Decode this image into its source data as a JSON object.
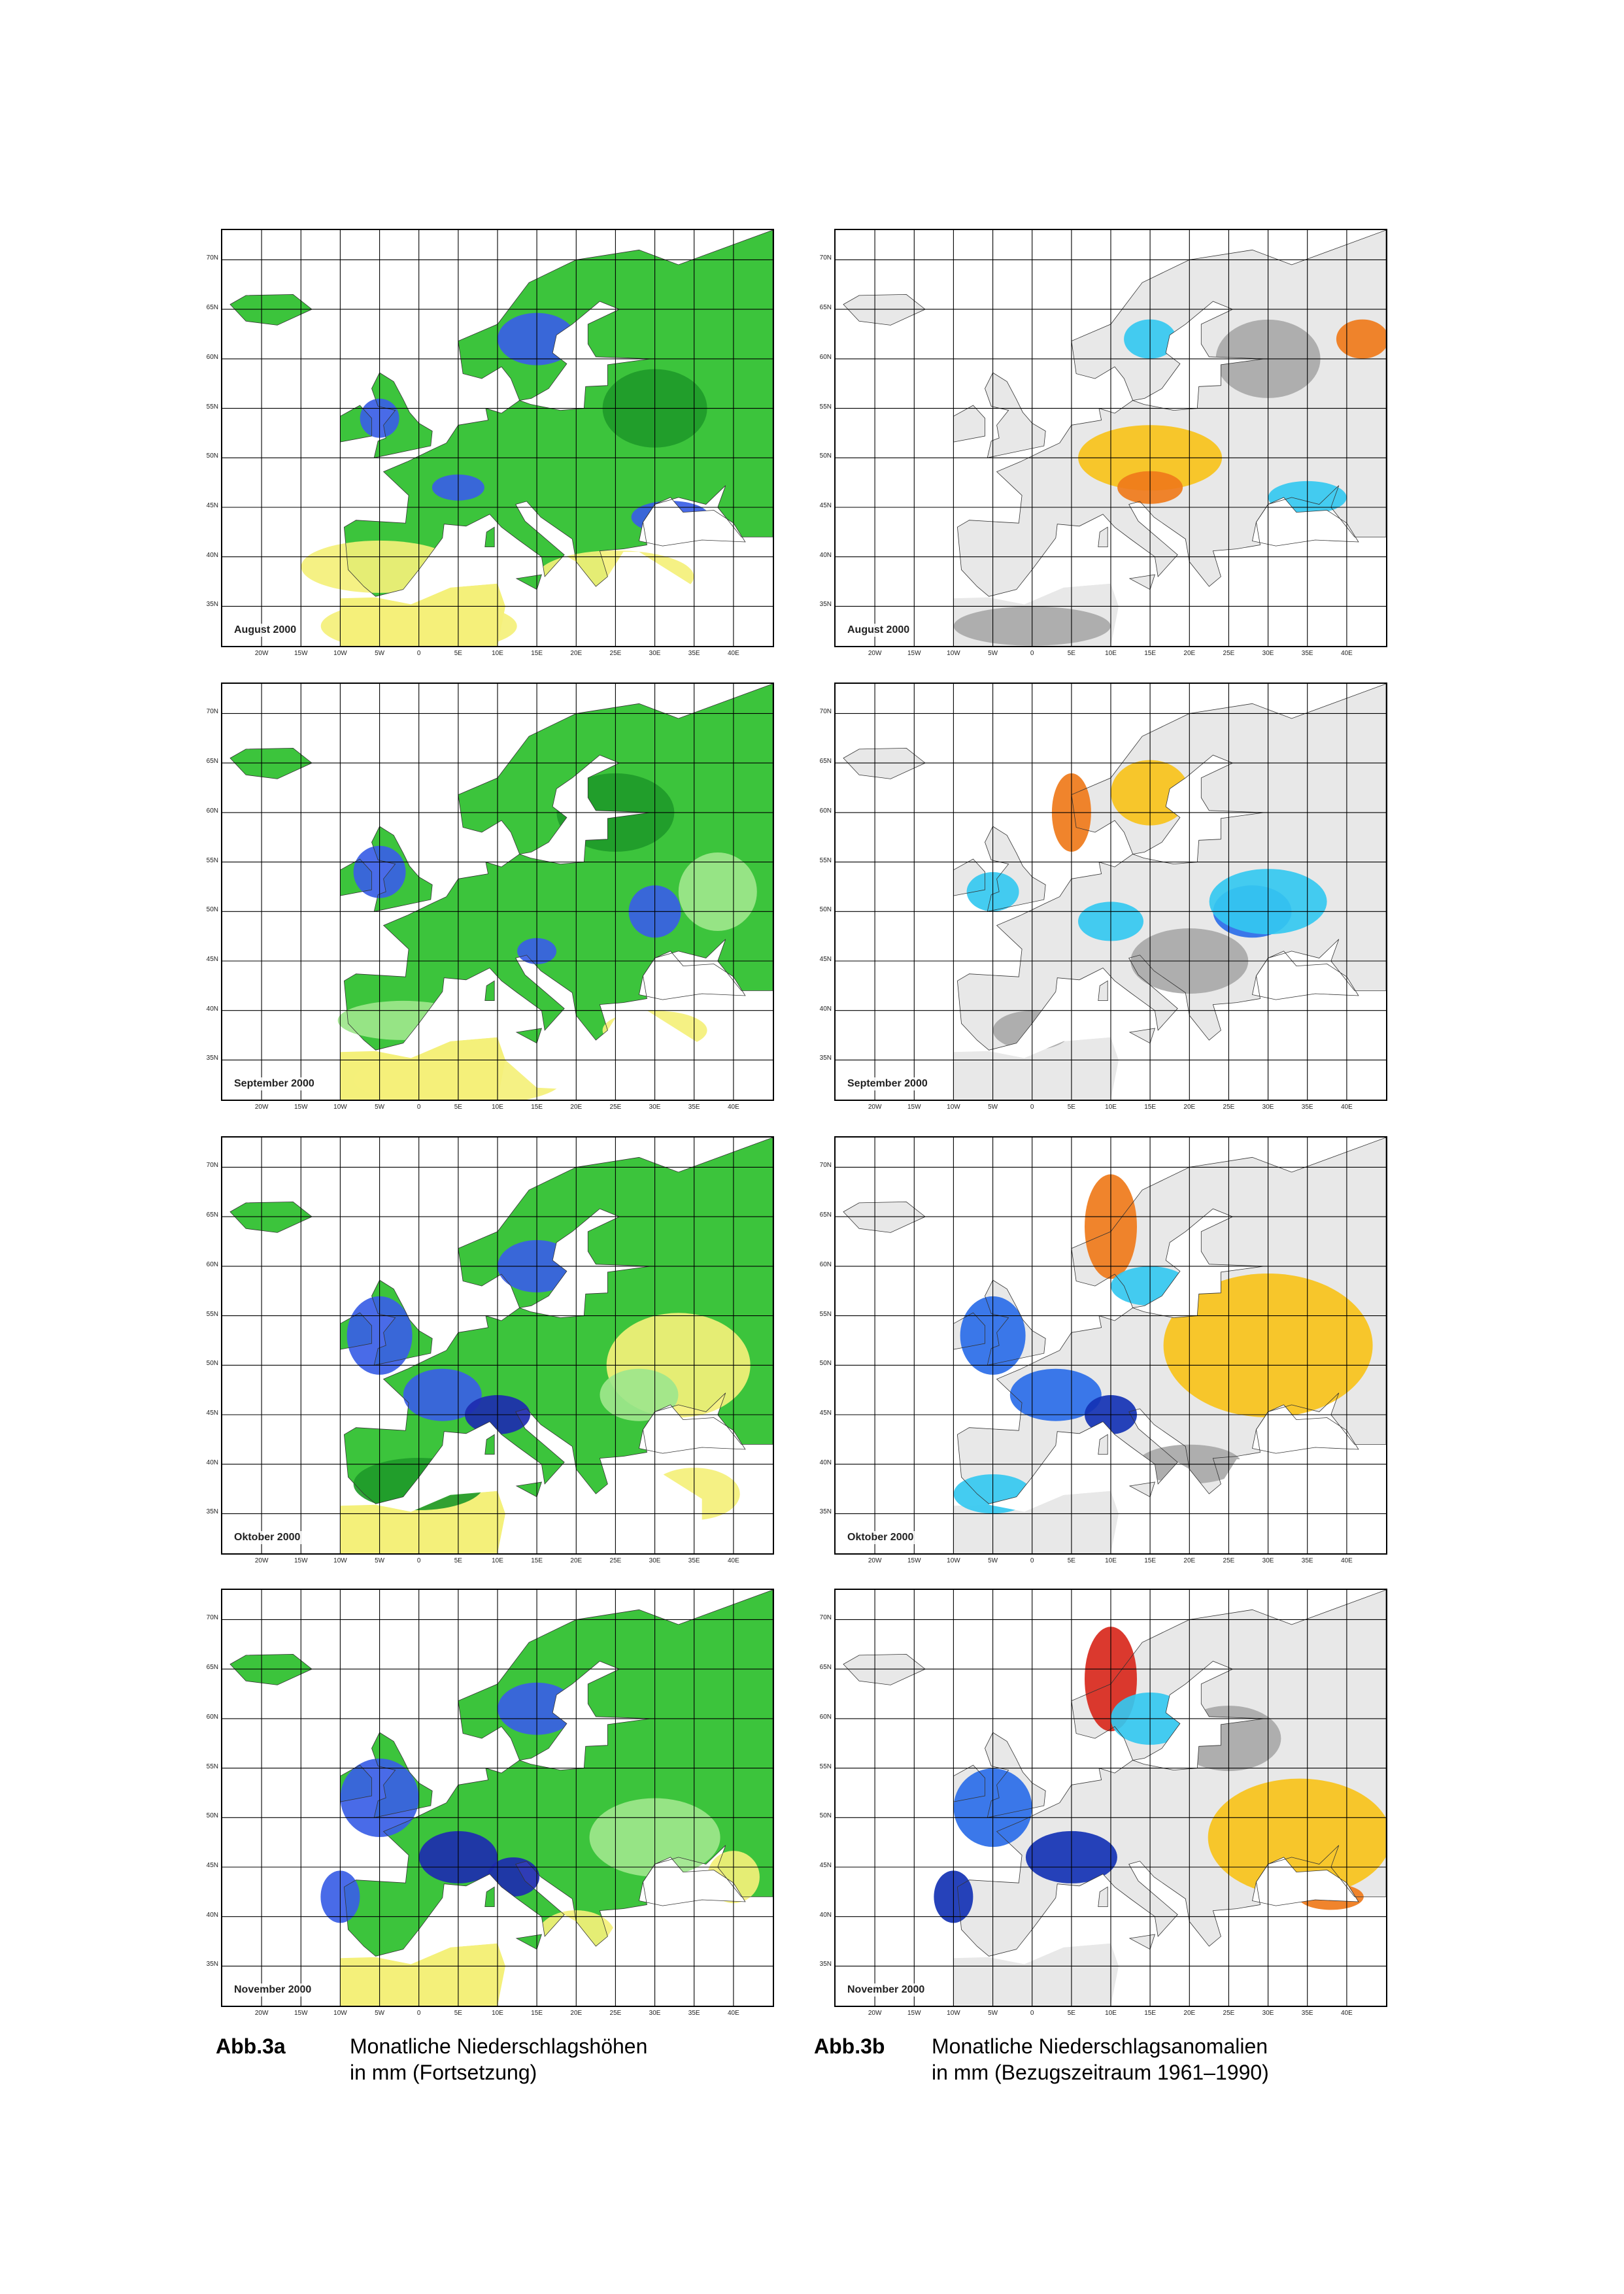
{
  "figures": [
    {
      "label": "Abb.3a",
      "line1": "Monatliche Niederschlagshöhen",
      "line2": "in mm (Fortsetzung)",
      "panels": [
        "August 2000",
        "September 2000",
        "Oktober 2000",
        "November 2000"
      ]
    },
    {
      "label": "Abb.3b",
      "line1": "Monatliche Niederschlagsanomalien",
      "line2": "in mm (Bezugszeitraum 1961–1990)",
      "panels": [
        "August 2000",
        "September 2000",
        "Oktober 2000",
        "November 2000"
      ]
    }
  ],
  "axes": {
    "lat_ticks": [
      "70N",
      "65N",
      "60N",
      "55N",
      "50N",
      "45N",
      "40N",
      "35N"
    ],
    "lon_ticks": [
      "20W",
      "15W",
      "10W",
      "5W",
      "0",
      "5E",
      "10E",
      "15E",
      "20E",
      "25E",
      "30E",
      "35E",
      "40E"
    ]
  },
  "colors": {
    "precip_dry": "#f4f07a",
    "precip_low": "#9ee68c",
    "precip_mid": "#3cc43c",
    "precip_high": "#1f9a2a",
    "precip_very_high": "#3a5ee6",
    "precip_extreme": "#1d2bb0",
    "anomaly_neutral": "#e8e8e8",
    "anomaly_small": "#a8a8a8",
    "anomaly_dry": "#f7c21a",
    "anomaly_very_dry": "#ef7a1a",
    "anomaly_extreme_dry": "#d8281c",
    "anomaly_wet": "#34c8f0",
    "anomaly_very_wet": "#2a6ce8",
    "anomaly_extreme_wet": "#1432b4"
  }
}
